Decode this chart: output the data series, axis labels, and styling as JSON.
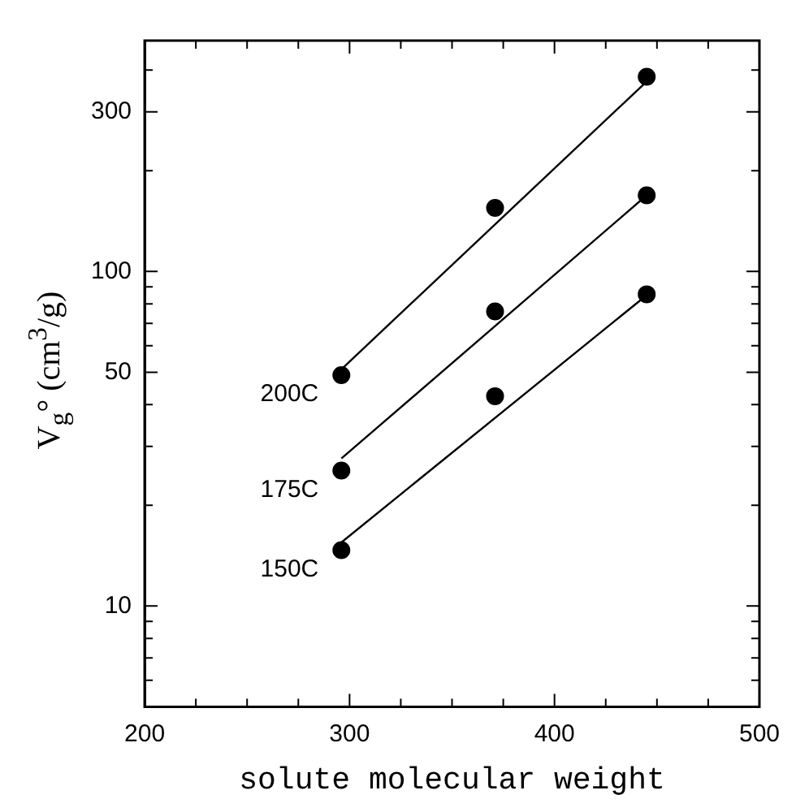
{
  "chart_data": {
    "type": "scatter",
    "xlabel": "solute molecular weight",
    "ylabel": "V$_{g}$° (cm$^{3}$/g)",
    "log": "y",
    "xlim": [
      200,
      500
    ],
    "xticks": [
      200,
      {
        "value": 225,
        "label": null
      },
      {
        "value": 250,
        "label": null
      },
      {
        "value": 275,
        "label": null
      },
      300,
      {
        "value": 325,
        "label": null
      },
      {
        "value": 350,
        "label": null
      },
      {
        "value": 375,
        "label": null
      },
      400,
      {
        "value": 425,
        "label": null
      },
      {
        "value": 450,
        "label": null
      },
      {
        "value": 475,
        "label": null
      },
      500
    ],
    "ylim": [
      5,
      490
    ],
    "yticks": [
      {
        "value": 6,
        "label": null
      },
      {
        "value": 7,
        "label": null
      },
      {
        "value": 8,
        "label": null
      },
      {
        "value": 9,
        "label": null
      },
      10,
      {
        "value": 20,
        "label": null
      },
      {
        "value": 30,
        "label": null
      },
      {
        "value": 40,
        "label": null
      },
      50,
      {
        "value": 60,
        "label": null
      },
      {
        "value": 70,
        "label": null
      },
      {
        "value": 80,
        "label": null
      },
      {
        "value": 90,
        "label": null
      },
      100,
      {
        "value": 200,
        "label": null
      },
      300,
      {
        "value": 400,
        "label": null
      }
    ],
    "series": [
      {
        "name": "200C",
        "marker": "circle",
        "color": "#000000",
        "x": [
          296,
          371,
          445
        ],
        "values": [
          49,
          155,
          382
        ]
      },
      {
        "name": "175C",
        "marker": "circle",
        "color": "#000000",
        "x": [
          296,
          371,
          445
        ],
        "values": [
          25.4,
          76,
          169
        ]
      },
      {
        "name": "150C",
        "marker": "circle",
        "color": "#000000",
        "x": [
          296,
          371,
          445
        ],
        "values": [
          14.7,
          42.4,
          85.5
        ]
      },
      {
        "type": "line",
        "marker": "none",
        "color": "#000000",
        "x": [
          296,
          445
        ],
        "values": [
          51,
          370
        ]
      },
      {
        "type": "line",
        "marker": "none",
        "color": "#000000",
        "x": [
          296,
          445
        ],
        "values": [
          27.6,
          169
        ]
      },
      {
        "type": "line",
        "marker": "none",
        "color": "#000000",
        "x": [
          296,
          445
        ],
        "values": [
          15.5,
          85
        ]
      }
    ]
  }
}
